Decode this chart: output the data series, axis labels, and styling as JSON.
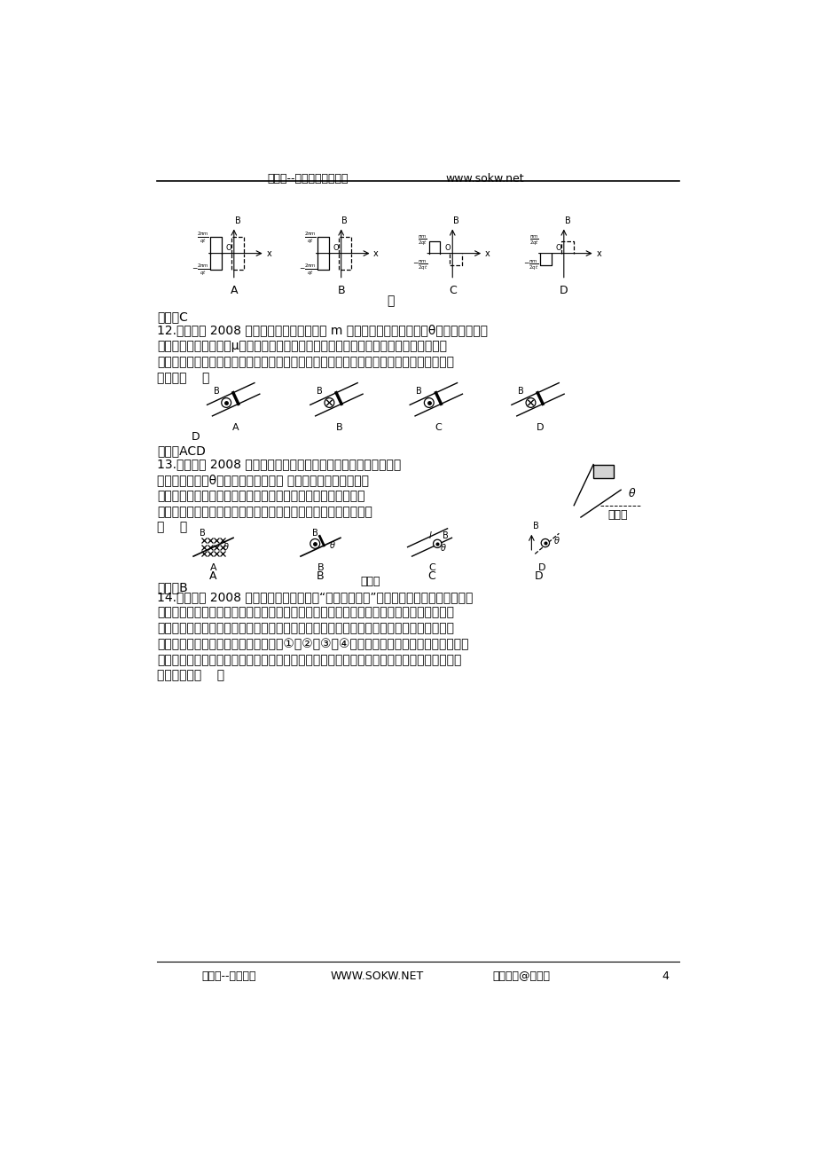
{
  "bg_color": "#ffffff",
  "header_text1": "搜课网--中小学教育资源网",
  "header_text2": "www.sokw.net",
  "footer_text1": "搜课网--系列资料",
  "footer_text2": "WWW.SOKW.NET",
  "footer_text3": "版权所有@搜课网",
  "footer_page": "4",
  "answer_11": "答案：C",
  "answer_12": "答案：ACD",
  "answer_13": "答案：B"
}
